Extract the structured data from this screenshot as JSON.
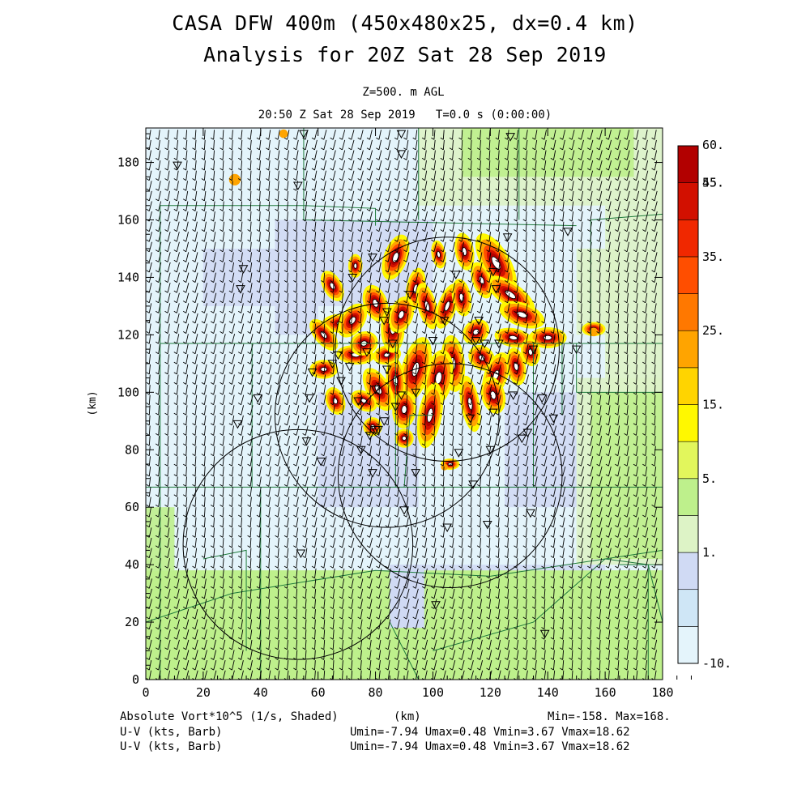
{
  "title_line1": "CASA DFW 400m (450x480x25, dx=0.4 km)",
  "title_line2": "Analysis for 20Z Sat 28 Sep 2019",
  "level_label": "Z=500. m AGL",
  "time_label": "20:50 Z Sat 28 Sep 2019   T=0.0 s (0:00:00)",
  "footer": {
    "field_label": "Absolute Vort*10^5 (1/s, Shaded)",
    "xunit": "(km)",
    "minmax": "Min=-158. Max=168.",
    "barb1_label": "U-V (kts, Barb)",
    "barb1_stats": "Umin=-7.94 Umax=0.48 Vmin=3.67 Vmax=18.62",
    "barb2_label": "U-V (kts, Barb)",
    "barb2_stats": "Umin=-7.94 Umax=0.48 Vmin=3.67 Vmax=18.62"
  },
  "chart_data": {
    "type": "heatmap",
    "xlabel": "",
    "ylabel": "(km)",
    "xlim": [
      0,
      180
    ],
    "ylim": [
      0,
      192
    ],
    "x_ticks": [
      0,
      20,
      40,
      60,
      80,
      100,
      120,
      140,
      160,
      180
    ],
    "y_ticks": [
      0,
      20,
      40,
      60,
      80,
      100,
      120,
      140,
      160,
      180
    ],
    "colorbar": {
      "levels": [
        -10,
        1,
        5,
        15,
        25,
        35,
        45,
        55,
        60
      ],
      "tick_labels": [
        "-10.",
        "1.",
        "5.",
        "15.",
        "25.",
        "35.",
        "45.",
        "55.",
        "60."
      ],
      "colors": [
        "#e4f4fb",
        "#cfe6f6",
        "#d0daf4",
        "#ddf3c6",
        "#bef08c",
        "#e2f65c",
        "#fff800",
        "#ffd400",
        "#ffa400",
        "#ff7800",
        "#ff4e00",
        "#f02800",
        "#d21000",
        "#b20000"
      ]
    },
    "radar_rings": [
      {
        "cx": 105,
        "cy": 115,
        "r": 39
      },
      {
        "cx": 84,
        "cy": 92,
        "r": 39
      },
      {
        "cx": 106,
        "cy": 71,
        "r": 39
      },
      {
        "cx": 53,
        "cy": 47,
        "r": 40
      }
    ],
    "wind_barb_summary": {
      "umin": -7.94,
      "umax": 0.48,
      "vmin": 3.67,
      "vmax": 18.62
    }
  }
}
